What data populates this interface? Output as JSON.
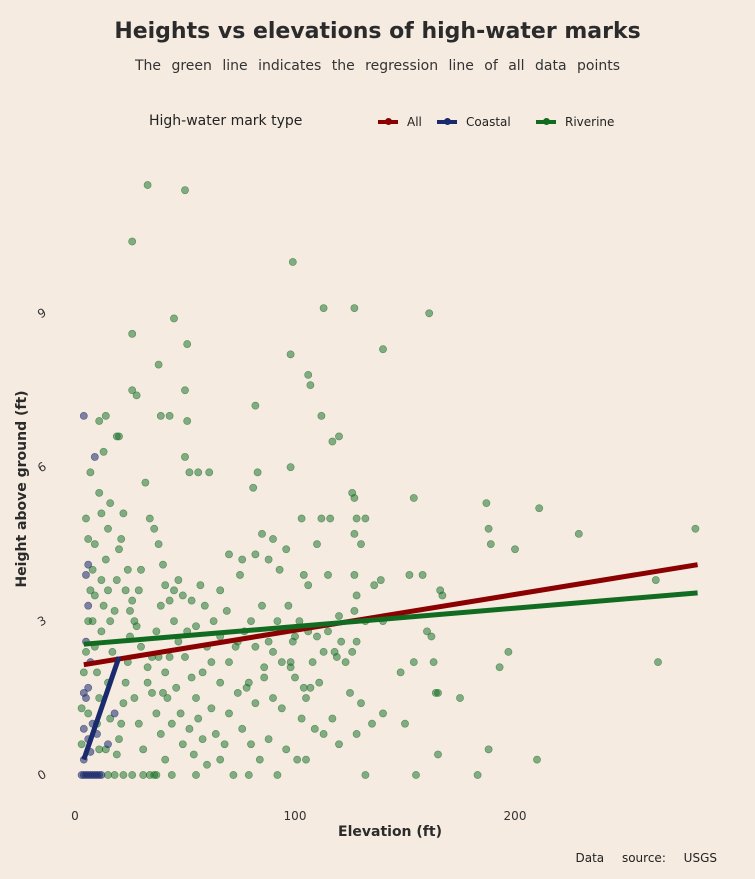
{
  "chart_data": {
    "type": "scatter",
    "title": "Heights vs elevations of high-water marks",
    "subtitle": "The green line indicates the regression line of all data points",
    "xlabel": "Elevation (ft)",
    "ylabel": "Height above ground (ft)",
    "xlim": [
      -2,
      284
    ],
    "ylim": [
      -0.4,
      11.5
    ],
    "x_ticks": [
      0,
      100,
      200
    ],
    "y_ticks": [
      0,
      3,
      6,
      9
    ],
    "grid": false,
    "legend": {
      "title": "High-water mark type",
      "position": "top",
      "entries": [
        {
          "name": "All",
          "color": "#8b0000"
        },
        {
          "name": "Coastal",
          "color": "#1a2a6c"
        },
        {
          "name": "Riverine",
          "color": "#116b21"
        }
      ]
    },
    "caption": "Data source: USGS",
    "regression_lines": [
      {
        "name": "All",
        "color": "#8b0000",
        "x": [
          4,
          283
        ],
        "y": [
          2.15,
          4.1
        ]
      },
      {
        "name": "Riverine",
        "color": "#116b21",
        "x": [
          4,
          283
        ],
        "y": [
          2.55,
          3.55
        ]
      },
      {
        "name": "Coastal",
        "color": "#1a2a6c",
        "x": [
          4,
          20
        ],
        "y": [
          0.3,
          2.3
        ]
      }
    ],
    "series": [
      {
        "name": "Coastal",
        "color": "#1a2a6c",
        "points": [
          [
            3,
            0
          ],
          [
            4,
            0
          ],
          [
            5,
            0
          ],
          [
            6,
            0
          ],
          [
            7,
            0
          ],
          [
            8,
            0
          ],
          [
            9,
            0
          ],
          [
            10,
            0
          ],
          [
            11,
            0
          ],
          [
            12,
            0
          ],
          [
            4,
            0.3
          ],
          [
            6,
            0.7
          ],
          [
            8,
            1.0
          ],
          [
            5,
            1.5
          ],
          [
            6,
            1.7
          ],
          [
            4,
            1.6
          ],
          [
            7,
            2.2
          ],
          [
            5,
            2.6
          ],
          [
            6,
            3.3
          ],
          [
            6,
            4.1
          ],
          [
            5,
            3.9
          ],
          [
            4,
            7.0
          ],
          [
            9,
            6.2
          ],
          [
            18,
            1.2
          ],
          [
            10,
            0.8
          ],
          [
            7,
            0.45
          ],
          [
            15,
            0.6
          ],
          [
            4,
            0.9
          ]
        ]
      },
      {
        "name": "Riverine",
        "color": "#116b21",
        "points": [
          [
            33,
            11.5
          ],
          [
            50,
            11.4
          ],
          [
            26,
            10.4
          ],
          [
            99,
            10.0
          ],
          [
            113,
            9.1
          ],
          [
            127,
            9.1
          ],
          [
            45,
            8.9
          ],
          [
            161,
            9.0
          ],
          [
            26,
            8.6
          ],
          [
            51,
            8.4
          ],
          [
            38,
            8.0
          ],
          [
            98,
            8.2
          ],
          [
            140,
            8.3
          ],
          [
            106,
            7.8
          ],
          [
            107,
            7.6
          ],
          [
            26,
            7.5
          ],
          [
            28,
            7.4
          ],
          [
            50,
            7.5
          ],
          [
            39,
            7.0
          ],
          [
            43,
            7.0
          ],
          [
            14,
            7.0
          ],
          [
            11,
            6.9
          ],
          [
            82,
            7.2
          ],
          [
            19,
            6.6
          ],
          [
            112,
            7.0
          ],
          [
            117,
            6.5
          ],
          [
            51,
            6.9
          ],
          [
            13,
            6.3
          ],
          [
            20,
            6.6
          ],
          [
            120,
            6.6
          ],
          [
            98,
            6.0
          ],
          [
            50,
            6.2
          ],
          [
            52,
            5.9
          ],
          [
            7,
            5.9
          ],
          [
            11,
            5.5
          ],
          [
            56,
            5.9
          ],
          [
            61,
            5.9
          ],
          [
            83,
            5.9
          ],
          [
            81,
            5.6
          ],
          [
            126,
            5.5
          ],
          [
            127,
            5.4
          ],
          [
            154,
            5.4
          ],
          [
            187,
            5.3
          ],
          [
            211,
            5.2
          ],
          [
            229,
            4.7
          ],
          [
            282,
            4.8
          ],
          [
            188,
            4.8
          ],
          [
            189,
            4.5
          ],
          [
            200,
            4.4
          ],
          [
            167,
            3.5
          ],
          [
            264,
            3.8
          ],
          [
            265,
            2.2
          ],
          [
            210,
            0.3
          ],
          [
            197,
            2.4
          ],
          [
            193,
            2.1
          ],
          [
            183,
            0.0
          ],
          [
            188,
            0.5
          ],
          [
            175,
            1.5
          ],
          [
            165,
            1.6
          ],
          [
            152,
            3.9
          ],
          [
            158,
            3.9
          ],
          [
            166,
            3.6
          ],
          [
            160,
            2.8
          ],
          [
            162,
            2.7
          ],
          [
            163,
            2.2
          ],
          [
            164,
            1.6
          ],
          [
            150,
            1.0
          ],
          [
            155,
            0.0
          ],
          [
            165,
            0.4
          ],
          [
            154,
            2.2
          ],
          [
            128,
            5.0
          ],
          [
            132,
            5.0
          ],
          [
            130,
            4.5
          ],
          [
            127,
            4.7
          ],
          [
            112,
            5.0
          ],
          [
            110,
            4.5
          ],
          [
            116,
            5.0
          ],
          [
            103,
            5.0
          ],
          [
            96,
            4.4
          ],
          [
            90,
            4.6
          ],
          [
            85,
            4.7
          ],
          [
            70,
            4.3
          ],
          [
            76,
            4.2
          ],
          [
            82,
            4.3
          ],
          [
            88,
            4.2
          ],
          [
            93,
            4.0
          ],
          [
            75,
            3.9
          ],
          [
            104,
            3.9
          ],
          [
            106,
            3.7
          ],
          [
            115,
            3.9
          ],
          [
            127,
            3.9
          ],
          [
            128,
            3.5
          ],
          [
            136,
            3.7
          ],
          [
            139,
            3.8
          ],
          [
            132,
            3.0
          ],
          [
            140,
            3.0
          ],
          [
            145,
            3.1
          ],
          [
            148,
            2.0
          ],
          [
            140,
            1.2
          ],
          [
            135,
            1.0
          ],
          [
            128,
            0.8
          ],
          [
            120,
            0.6
          ],
          [
            113,
            0.8
          ],
          [
            105,
            1.5
          ],
          [
            100,
            1.9
          ],
          [
            98,
            2.2
          ],
          [
            99,
            2.6
          ],
          [
            102,
            3.0
          ],
          [
            97,
            3.3
          ],
          [
            92,
            3.0
          ],
          [
            88,
            2.6
          ],
          [
            85,
            3.3
          ],
          [
            80,
            3.0
          ],
          [
            77,
            2.8
          ],
          [
            73,
            2.5
          ],
          [
            70,
            2.2
          ],
          [
            66,
            2.7
          ],
          [
            63,
            3.0
          ],
          [
            60,
            2.5
          ],
          [
            58,
            2.0
          ],
          [
            55,
            1.5
          ],
          [
            53,
            1.9
          ],
          [
            50,
            2.3
          ],
          [
            47,
            2.6
          ],
          [
            45,
            3.0
          ],
          [
            43,
            3.4
          ],
          [
            41,
            3.7
          ],
          [
            40,
            4.1
          ],
          [
            38,
            4.5
          ],
          [
            36,
            4.8
          ],
          [
            34,
            5.0
          ],
          [
            32,
            5.7
          ],
          [
            30,
            4.0
          ],
          [
            29,
            3.6
          ],
          [
            27,
            3.0
          ],
          [
            25,
            2.7
          ],
          [
            24,
            2.2
          ],
          [
            23,
            1.8
          ],
          [
            22,
            1.4
          ],
          [
            21,
            1.0
          ],
          [
            20,
            0.7
          ],
          [
            19,
            0.4
          ],
          [
            18,
            0.0
          ],
          [
            21,
            4.6
          ],
          [
            22,
            5.1
          ],
          [
            24,
            4.0
          ],
          [
            26,
            3.4
          ],
          [
            28,
            2.9
          ],
          [
            30,
            2.5
          ],
          [
            33,
            2.1
          ],
          [
            35,
            1.6
          ],
          [
            37,
            1.2
          ],
          [
            39,
            0.8
          ],
          [
            41,
            0.3
          ],
          [
            44,
            0.0
          ],
          [
            34,
            0.0
          ],
          [
            36,
            0.0
          ],
          [
            26,
            0.0
          ],
          [
            31,
            0.0
          ],
          [
            22,
            0.0
          ],
          [
            15,
            0.0
          ],
          [
            14,
            0.5
          ],
          [
            16,
            1.1
          ],
          [
            15,
            1.8
          ],
          [
            17,
            2.4
          ],
          [
            16,
            3.0
          ],
          [
            15,
            3.6
          ],
          [
            14,
            4.2
          ],
          [
            15,
            4.8
          ],
          [
            16,
            5.3
          ],
          [
            12,
            5.1
          ],
          [
            9,
            4.5
          ],
          [
            8,
            4.0
          ],
          [
            9,
            3.5
          ],
          [
            8,
            3.0
          ],
          [
            9,
            2.5
          ],
          [
            10,
            2.0
          ],
          [
            11,
            1.5
          ],
          [
            10,
            1.0
          ],
          [
            11,
            0.5
          ],
          [
            6,
            1.2
          ],
          [
            5,
            2.4
          ],
          [
            6,
            3.0
          ],
          [
            7,
            3.6
          ],
          [
            6,
            4.6
          ],
          [
            5,
            5.0
          ],
          [
            4,
            2.0
          ],
          [
            3,
            1.3
          ],
          [
            3,
            0.6
          ],
          [
            12,
            2.8
          ],
          [
            13,
            3.3
          ],
          [
            12,
            3.8
          ],
          [
            18,
            3.2
          ],
          [
            19,
            3.8
          ],
          [
            20,
            4.4
          ],
          [
            23,
            3.6
          ],
          [
            25,
            3.2
          ],
          [
            27,
            1.5
          ],
          [
            29,
            1.0
          ],
          [
            31,
            0.5
          ],
          [
            33,
            1.8
          ],
          [
            35,
            2.3
          ],
          [
            37,
            2.8
          ],
          [
            39,
            3.3
          ],
          [
            42,
            1.5
          ],
          [
            44,
            1.0
          ],
          [
            46,
            1.7
          ],
          [
            48,
            1.2
          ],
          [
            49,
            0.6
          ],
          [
            52,
            0.9
          ],
          [
            54,
            0.4
          ],
          [
            56,
            1.1
          ],
          [
            58,
            0.7
          ],
          [
            60,
            0.2
          ],
          [
            62,
            1.3
          ],
          [
            64,
            0.8
          ],
          [
            66,
            1.8
          ],
          [
            68,
            0.6
          ],
          [
            70,
            1.2
          ],
          [
            72,
            0.0
          ],
          [
            74,
            1.6
          ],
          [
            76,
            0.9
          ],
          [
            78,
            1.7
          ],
          [
            80,
            0.6
          ],
          [
            82,
            1.4
          ],
          [
            84,
            0.3
          ],
          [
            86,
            1.9
          ],
          [
            88,
            0.7
          ],
          [
            90,
            1.5
          ],
          [
            92,
            0.0
          ],
          [
            94,
            1.3
          ],
          [
            96,
            0.5
          ],
          [
            98,
            2.1
          ],
          [
            101,
            0.3
          ],
          [
            103,
            1.1
          ],
          [
            105,
            0.3
          ],
          [
            107,
            1.7
          ],
          [
            109,
            0.9
          ],
          [
            111,
            1.8
          ],
          [
            113,
            2.4
          ],
          [
            115,
            2.8
          ],
          [
            117,
            1.1
          ],
          [
            119,
            2.3
          ],
          [
            121,
            2.6
          ],
          [
            123,
            2.2
          ],
          [
            125,
            1.6
          ],
          [
            126,
            2.4
          ],
          [
            127,
            3.2
          ],
          [
            128,
            2.6
          ],
          [
            130,
            1.4
          ],
          [
            132,
            0.0
          ],
          [
            120,
            3.1
          ],
          [
            118,
            2.4
          ],
          [
            110,
            2.7
          ],
          [
            108,
            2.2
          ],
          [
            106,
            2.8
          ],
          [
            104,
            1.7
          ],
          [
            100,
            2.7
          ],
          [
            94,
            2.2
          ],
          [
            90,
            2.4
          ],
          [
            86,
            2.1
          ],
          [
            82,
            2.5
          ],
          [
            79,
            1.8
          ],
          [
            74,
            2.6
          ],
          [
            69,
            3.2
          ],
          [
            66,
            3.6
          ],
          [
            62,
            2.2
          ],
          [
            59,
            3.3
          ],
          [
            57,
            3.7
          ],
          [
            55,
            2.9
          ],
          [
            53,
            3.4
          ],
          [
            51,
            2.8
          ],
          [
            49,
            3.5
          ],
          [
            47,
            3.8
          ],
          [
            45,
            3.6
          ],
          [
            43,
            2.3
          ],
          [
            41,
            2.0
          ],
          [
            40,
            1.6
          ],
          [
            38,
            2.3
          ],
          [
            37,
            0.0
          ],
          [
            55,
            0.0
          ],
          [
            66,
            0.3
          ],
          [
            79,
            0.0
          ]
        ]
      }
    ]
  }
}
